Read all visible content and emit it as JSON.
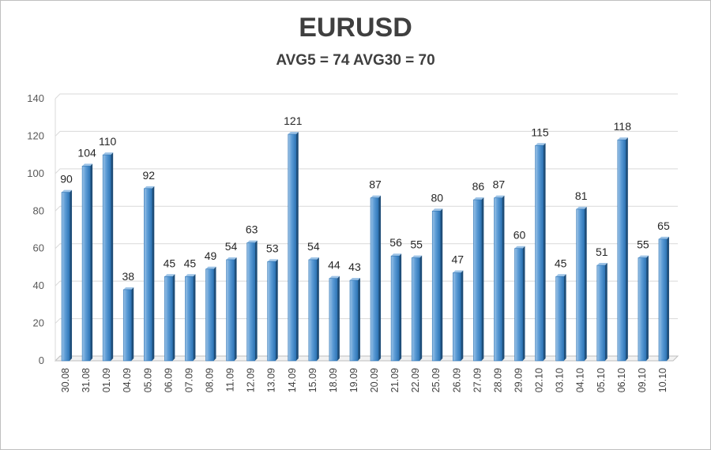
{
  "chart_data": {
    "type": "bar",
    "title": "EURUSD",
    "subtitle": "AVG5 = 74 AVG30 = 70",
    "xlabel": "",
    "ylabel": "",
    "ylim": [
      0,
      140
    ],
    "yticks": [
      0,
      20,
      40,
      60,
      80,
      100,
      120,
      140
    ],
    "grid": true,
    "legend": "none",
    "categories": [
      "30.08",
      "31.08",
      "01.09",
      "04.09",
      "05.09",
      "06.09",
      "07.09",
      "08.09",
      "11.09",
      "12.09",
      "13.09",
      "14.09",
      "15.09",
      "18.09",
      "19.09",
      "20.09",
      "21.09",
      "22.09",
      "25.09",
      "26.09",
      "27.09",
      "28.09",
      "29.09",
      "02.10",
      "03.10",
      "04.10",
      "05.10",
      "06.10",
      "09.10",
      "10.10"
    ],
    "values": [
      90,
      104,
      110,
      38,
      92,
      45,
      45,
      49,
      54,
      63,
      53,
      121,
      54,
      44,
      43,
      87,
      56,
      55,
      80,
      47,
      86,
      87,
      60,
      115,
      45,
      81,
      51,
      118,
      55,
      65
    ],
    "colors": {
      "bar_light": "#9dc3e6",
      "bar_main": "#5b9bd5",
      "bar_dark": "#2e75b6",
      "bar_side": "#1f4e79",
      "grid": "#d9d9d9",
      "text": "#3f3f3f"
    }
  }
}
